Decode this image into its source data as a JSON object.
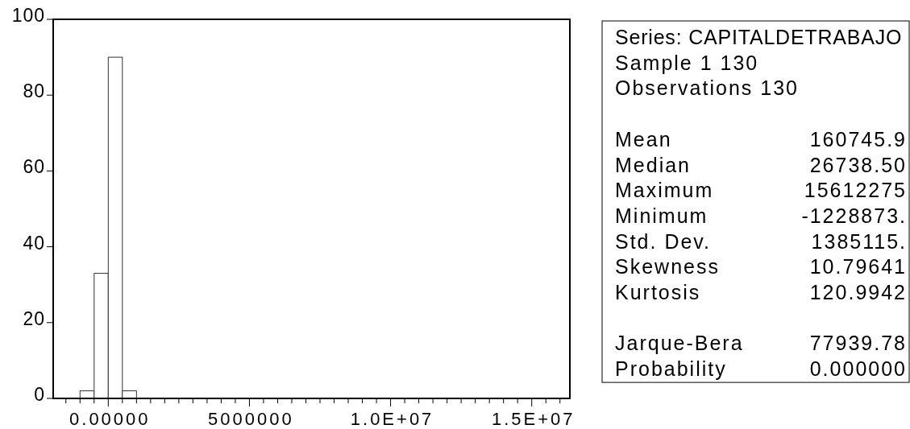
{
  "chart_data": [
    {
      "type": "histogram",
      "bins": [
        -1000000,
        -500000,
        0,
        500000,
        1000000
      ],
      "values": [
        2,
        33,
        90,
        2
      ],
      "color": "#ffffff",
      "xlim": [
        -1950000,
        16350000
      ],
      "ylim": [
        0,
        100
      ],
      "yticks": [
        0,
        20,
        40,
        60,
        80,
        100
      ],
      "xticks": [
        {
          "value": -1500000,
          "label": null
        },
        {
          "value": -1000000,
          "label": null
        },
        {
          "value": -500000,
          "label": null
        },
        {
          "value": 0,
          "label": "0.00000"
        },
        {
          "value": 500000,
          "label": null
        },
        {
          "value": 1000000,
          "label": null
        },
        {
          "value": 1500000,
          "label": null
        },
        {
          "value": 2000000,
          "label": null
        },
        {
          "value": 2500000,
          "label": null
        },
        {
          "value": 3000000,
          "label": null
        },
        {
          "value": 3500000,
          "label": null
        },
        {
          "value": 4000000,
          "label": null
        },
        {
          "value": 4500000,
          "label": null
        },
        5000000,
        {
          "value": 5500000,
          "label": null
        },
        {
          "value": 6000000,
          "label": null
        },
        {
          "value": 6500000,
          "label": null
        },
        {
          "value": 7000000,
          "label": null
        },
        {
          "value": 7500000,
          "label": null
        },
        {
          "value": 8000000,
          "label": null
        },
        {
          "value": 8500000,
          "label": null
        },
        {
          "value": 9000000,
          "label": null
        },
        {
          "value": 9500000,
          "label": null
        },
        {
          "value": 10000000,
          "label": "1.0E+07"
        },
        {
          "value": 10500000,
          "label": null
        },
        {
          "value": 11000000,
          "label": null
        },
        {
          "value": 11500000,
          "label": null
        },
        {
          "value": 12000000,
          "label": null
        },
        {
          "value": 12500000,
          "label": null
        },
        {
          "value": 13000000,
          "label": null
        },
        {
          "value": 13500000,
          "label": null
        },
        {
          "value": 14000000,
          "label": null
        },
        {
          "value": 14500000,
          "label": null
        },
        {
          "value": 15000000,
          "label": "1.5E+07"
        },
        {
          "value": 15500000,
          "label": null
        },
        {
          "value": 16000000,
          "label": null
        }
      ]
    },
    {
      "type": "other",
      "title": "Series: CAPITALDETRABAJO",
      "annotations": [
        "Sample 1 130",
        "Observations 130"
      ],
      "categories": [
        "Mean",
        "Median",
        "Maximum",
        "Minimum",
        "Std. Dev.",
        "Skewness",
        "Kurtosis",
        null,
        "Jarque-Bera",
        "Probability"
      ],
      "value_labels": [
        "160745.9",
        "26738.50",
        "15612275",
        "-1228873.",
        "1385115.",
        "10.79641",
        "120.9942",
        null,
        "77939.78",
        "0.000000"
      ]
    }
  ]
}
